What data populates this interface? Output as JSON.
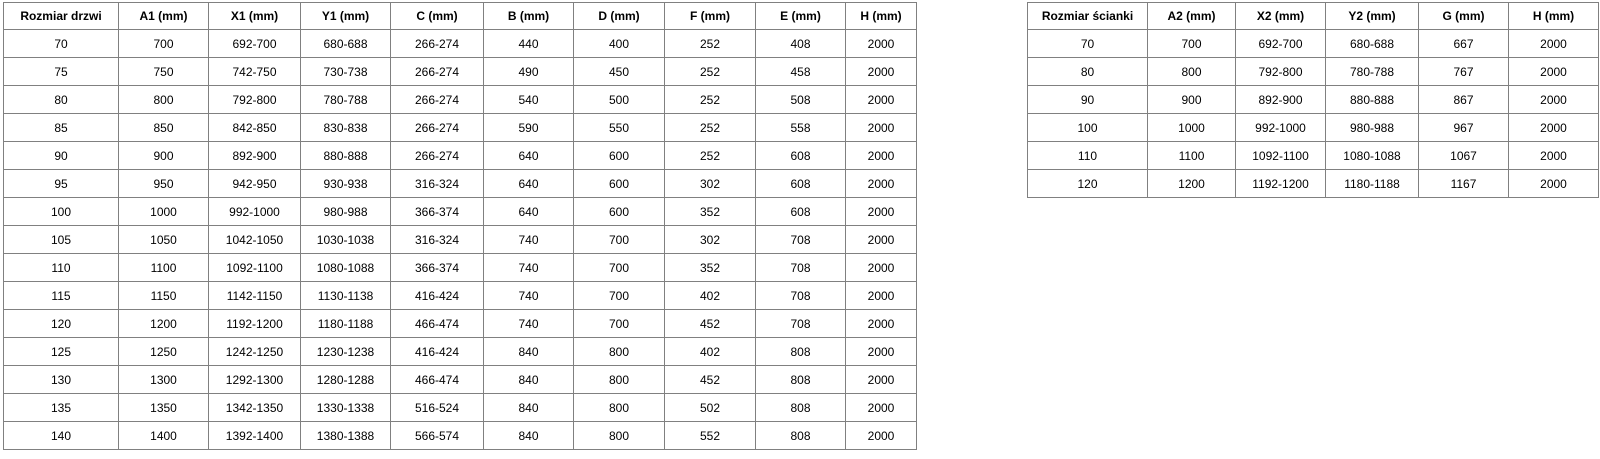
{
  "page": {
    "background_color": "#ffffff",
    "border_color": "#808080",
    "text_color": "#000000"
  },
  "door_table": {
    "columns": [
      "Rozmiar drzwi",
      "A1 (mm)",
      "X1 (mm)",
      "Y1 (mm)",
      "C (mm)",
      "B (mm)",
      "D (mm)",
      "F (mm)",
      "E (mm)",
      "H (mm)"
    ],
    "rows": [
      [
        "70",
        "700",
        "692-700",
        "680-688",
        "266-274",
        "440",
        "400",
        "252",
        "408",
        "2000"
      ],
      [
        "75",
        "750",
        "742-750",
        "730-738",
        "266-274",
        "490",
        "450",
        "252",
        "458",
        "2000"
      ],
      [
        "80",
        "800",
        "792-800",
        "780-788",
        "266-274",
        "540",
        "500",
        "252",
        "508",
        "2000"
      ],
      [
        "85",
        "850",
        "842-850",
        "830-838",
        "266-274",
        "590",
        "550",
        "252",
        "558",
        "2000"
      ],
      [
        "90",
        "900",
        "892-900",
        "880-888",
        "266-274",
        "640",
        "600",
        "252",
        "608",
        "2000"
      ],
      [
        "95",
        "950",
        "942-950",
        "930-938",
        "316-324",
        "640",
        "600",
        "302",
        "608",
        "2000"
      ],
      [
        "100",
        "1000",
        "992-1000",
        "980-988",
        "366-374",
        "640",
        "600",
        "352",
        "608",
        "2000"
      ],
      [
        "105",
        "1050",
        "1042-1050",
        "1030-1038",
        "316-324",
        "740",
        "700",
        "302",
        "708",
        "2000"
      ],
      [
        "110",
        "1100",
        "1092-1100",
        "1080-1088",
        "366-374",
        "740",
        "700",
        "352",
        "708",
        "2000"
      ],
      [
        "115",
        "1150",
        "1142-1150",
        "1130-1138",
        "416-424",
        "740",
        "700",
        "402",
        "708",
        "2000"
      ],
      [
        "120",
        "1200",
        "1192-1200",
        "1180-1188",
        "466-474",
        "740",
        "700",
        "452",
        "708",
        "2000"
      ],
      [
        "125",
        "1250",
        "1242-1250",
        "1230-1238",
        "416-424",
        "840",
        "800",
        "402",
        "808",
        "2000"
      ],
      [
        "130",
        "1300",
        "1292-1300",
        "1280-1288",
        "466-474",
        "840",
        "800",
        "452",
        "808",
        "2000"
      ],
      [
        "135",
        "1350",
        "1342-1350",
        "1330-1338",
        "516-524",
        "840",
        "800",
        "502",
        "808",
        "2000"
      ],
      [
        "140",
        "1400",
        "1392-1400",
        "1380-1388",
        "566-574",
        "840",
        "800",
        "552",
        "808",
        "2000"
      ]
    ]
  },
  "wall_table": {
    "columns": [
      "Rozmiar ścianki",
      "A2 (mm)",
      "X2 (mm)",
      "Y2 (mm)",
      "G (mm)",
      "H (mm)"
    ],
    "rows": [
      [
        "70",
        "700",
        "692-700",
        "680-688",
        "667",
        "2000"
      ],
      [
        "80",
        "800",
        "792-800",
        "780-788",
        "767",
        "2000"
      ],
      [
        "90",
        "900",
        "892-900",
        "880-888",
        "867",
        "2000"
      ],
      [
        "100",
        "1000",
        "992-1000",
        "980-988",
        "967",
        "2000"
      ],
      [
        "110",
        "1100",
        "1092-1100",
        "1080-1088",
        "1067",
        "2000"
      ],
      [
        "120",
        "1200",
        "1192-1200",
        "1180-1188",
        "1167",
        "2000"
      ]
    ]
  }
}
